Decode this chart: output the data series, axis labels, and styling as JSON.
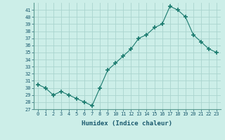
{
  "x": [
    0,
    1,
    2,
    3,
    4,
    5,
    6,
    7,
    8,
    9,
    10,
    11,
    12,
    13,
    14,
    15,
    16,
    17,
    18,
    19,
    20,
    21,
    22,
    23
  ],
  "y": [
    30.5,
    30.0,
    29.0,
    29.5,
    29.0,
    28.5,
    28.0,
    27.5,
    30.0,
    32.5,
    33.5,
    34.5,
    35.5,
    37.0,
    37.5,
    38.5,
    39.0,
    41.5,
    41.0,
    40.0,
    37.5,
    36.5,
    35.5,
    35.0
  ],
  "line_color": "#1a7a6e",
  "marker": "+",
  "bg_color": "#cceee8",
  "grid_color": "#aad4ce",
  "xlabel": "Humidex (Indice chaleur)",
  "ylim_min": 27,
  "ylim_max": 42,
  "xlim_min": -0.5,
  "xlim_max": 23.5,
  "yticks": [
    27,
    28,
    29,
    30,
    31,
    32,
    33,
    34,
    35,
    36,
    37,
    38,
    39,
    40,
    41
  ],
  "xticks": [
    0,
    1,
    2,
    3,
    4,
    5,
    6,
    7,
    8,
    9,
    10,
    11,
    12,
    13,
    14,
    15,
    16,
    17,
    18,
    19,
    20,
    21,
    22,
    23
  ]
}
